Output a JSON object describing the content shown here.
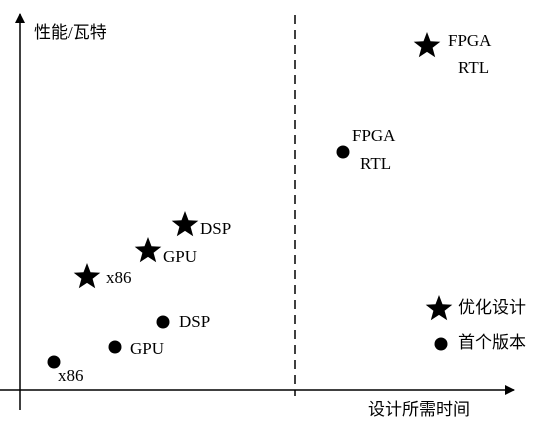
{
  "axes": {
    "y_label": "性能/瓦特",
    "x_label": "设计所需时间"
  },
  "points": [
    {
      "marker": "star",
      "lines": [
        "FPGA",
        "RTL"
      ]
    },
    {
      "marker": "circle",
      "lines": [
        "FPGA",
        "RTL"
      ]
    },
    {
      "marker": "star",
      "lines": [
        "DSP"
      ]
    },
    {
      "marker": "star",
      "lines": [
        "GPU"
      ]
    },
    {
      "marker": "star",
      "lines": [
        "x86"
      ]
    },
    {
      "marker": "circle",
      "lines": [
        "DSP"
      ]
    },
    {
      "marker": "circle",
      "lines": [
        "GPU"
      ]
    },
    {
      "marker": "circle",
      "lines": [
        "x86"
      ]
    }
  ],
  "legend": [
    {
      "marker": "star",
      "label": "优化设计"
    },
    {
      "marker": "circle",
      "label": "首个版本"
    }
  ]
}
